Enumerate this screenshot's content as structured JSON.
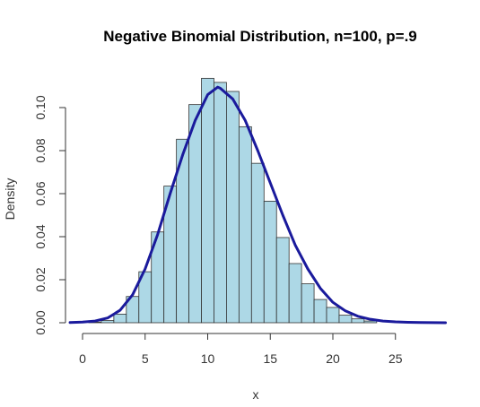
{
  "chart_data": {
    "type": "bar",
    "title": "Negative Binomial Distribution, n=100, p=.9",
    "xlabel": "x",
    "ylabel": "Density",
    "xlim": [
      -1,
      29
    ],
    "ylim": [
      0,
      0.115
    ],
    "xticks": [
      "0",
      "5",
      "10",
      "15",
      "20",
      "25"
    ],
    "yticks": [
      "0.00",
      "0.02",
      "0.04",
      "0.06",
      "0.08",
      "0.10"
    ],
    "bins": [
      1,
      2,
      3,
      4,
      5,
      6,
      7,
      8,
      9,
      10,
      11,
      12,
      13,
      14,
      15,
      16,
      17,
      18,
      19,
      20,
      21,
      22,
      23
    ],
    "values": [
      0.0003,
      0.001,
      0.004,
      0.0122,
      0.0237,
      0.0422,
      0.0635,
      0.0853,
      0.1014,
      0.1136,
      0.1117,
      0.1075,
      0.0911,
      0.0741,
      0.0565,
      0.0396,
      0.0275,
      0.0181,
      0.0108,
      0.0071,
      0.0035,
      0.0018,
      0.0008
    ],
    "series": [
      {
        "type": "line",
        "x": [
          -1,
          0,
          1,
          2,
          3,
          4,
          5,
          6,
          7,
          8,
          9,
          10,
          10.8,
          11,
          12,
          13,
          14,
          15,
          16,
          17,
          18,
          19,
          20,
          21,
          22,
          23,
          24,
          25,
          26,
          27,
          28,
          29
        ],
        "y": [
          0.0001,
          0.0003,
          0.0008,
          0.0022,
          0.0058,
          0.013,
          0.025,
          0.041,
          0.06,
          0.078,
          0.094,
          0.106,
          0.1095,
          0.109,
          0.104,
          0.094,
          0.08,
          0.065,
          0.05,
          0.036,
          0.025,
          0.016,
          0.0095,
          0.0055,
          0.003,
          0.0016,
          0.0008,
          0.0004,
          0.0002,
          0.0001,
          5e-05,
          2e-05
        ]
      }
    ],
    "colors": {
      "bar_fill": "#add8e6",
      "curve": "#1a1a9c"
    },
    "grid": false
  }
}
